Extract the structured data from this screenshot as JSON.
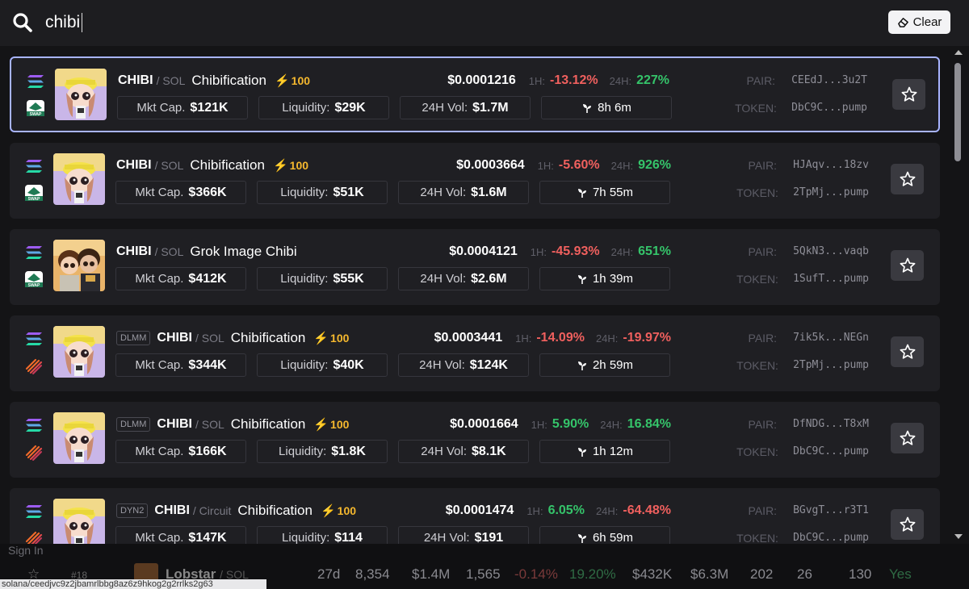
{
  "search": {
    "query": "chibi",
    "clear_label": "Clear"
  },
  "results": [
    {
      "tag": "",
      "symbol": "CHIBI",
      "quote": "/ SOL",
      "name": "Chibification",
      "score": "100",
      "price": "$0.0001216",
      "h1_label": "1H:",
      "h1": "-13.12%",
      "h1_dir": "neg",
      "h24_label": "24H:",
      "h24": "227%",
      "h24_dir": "pos",
      "mcap_label": "Mkt Cap.",
      "mcap": "$121K",
      "liq_label": "Liquidity:",
      "liq": "$29K",
      "vol_label": "24H Vol:",
      "vol": "$1.7M",
      "age": "8h 6m",
      "pair_label": "PAIR:",
      "pair": "CEEdJ...3u2T",
      "token_label": "TOKEN:",
      "token": "DbC9C...pump",
      "dex": "swap",
      "avatar": "girl"
    },
    {
      "tag": "",
      "symbol": "CHIBI",
      "quote": "/ SOL",
      "name": "Chibification",
      "score": "100",
      "price": "$0.0003664",
      "h1_label": "1H:",
      "h1": "-5.60%",
      "h1_dir": "neg",
      "h24_label": "24H:",
      "h24": "926%",
      "h24_dir": "pos",
      "mcap_label": "Mkt Cap.",
      "mcap": "$366K",
      "liq_label": "Liquidity:",
      "liq": "$51K",
      "vol_label": "24H Vol:",
      "vol": "$1.6M",
      "age": "7h 55m",
      "pair_label": "PAIR:",
      "pair": "HJAqv...18zv",
      "token_label": "TOKEN:",
      "token": "2TpMj...pump",
      "dex": "swap",
      "avatar": "girl"
    },
    {
      "tag": "",
      "symbol": "CHIBI",
      "quote": "/ SOL",
      "name": "Grok Image Chibi",
      "score": "",
      "price": "$0.0004121",
      "h1_label": "1H:",
      "h1": "-45.93%",
      "h1_dir": "neg",
      "h24_label": "24H:",
      "h24": "651%",
      "h24_dir": "pos",
      "mcap_label": "Mkt Cap.",
      "mcap": "$412K",
      "liq_label": "Liquidity:",
      "liq": "$55K",
      "vol_label": "24H Vol:",
      "vol": "$2.6M",
      "age": "1h 39m",
      "pair_label": "PAIR:",
      "pair": "5QkN3...vaqb",
      "token_label": "TOKEN:",
      "token": "1SufT...pump",
      "dex": "swap",
      "avatar": "pair"
    },
    {
      "tag": "DLMM",
      "symbol": "CHIBI",
      "quote": "/ SOL",
      "name": "Chibification",
      "score": "100",
      "price": "$0.0003441",
      "h1_label": "1H:",
      "h1": "-14.09%",
      "h1_dir": "neg",
      "h24_label": "24H:",
      "h24": "-19.97%",
      "h24_dir": "neg",
      "mcap_label": "Mkt Cap.",
      "mcap": "$344K",
      "liq_label": "Liquidity:",
      "liq": "$40K",
      "vol_label": "24H Vol:",
      "vol": "$124K",
      "age": "2h 59m",
      "pair_label": "PAIR:",
      "pair": "7ik5k...NEGn",
      "token_label": "TOKEN:",
      "token": "2TpMj...pump",
      "dex": "meteora",
      "avatar": "girl"
    },
    {
      "tag": "DLMM",
      "symbol": "CHIBI",
      "quote": "/ SOL",
      "name": "Chibification",
      "score": "100",
      "price": "$0.0001664",
      "h1_label": "1H:",
      "h1": "5.90%",
      "h1_dir": "pos",
      "h24_label": "24H:",
      "h24": "16.84%",
      "h24_dir": "pos",
      "mcap_label": "Mkt Cap.",
      "mcap": "$166K",
      "liq_label": "Liquidity:",
      "liq": "$1.8K",
      "vol_label": "24H Vol:",
      "vol": "$8.1K",
      "age": "1h 12m",
      "pair_label": "PAIR:",
      "pair": "DfNDG...T8xM",
      "token_label": "TOKEN:",
      "token": "DbC9C...pump",
      "dex": "meteora",
      "avatar": "girl"
    },
    {
      "tag": "DYN2",
      "symbol": "CHIBI",
      "quote": "/ Circuit",
      "name": "Chibification",
      "score": "100",
      "price": "$0.0001474",
      "h1_label": "1H:",
      "h1": "6.05%",
      "h1_dir": "pos",
      "h24_label": "24H:",
      "h24": "-64.48%",
      "h24_dir": "neg",
      "mcap_label": "Mkt Cap.",
      "mcap": "$147K",
      "liq_label": "Liquidity:",
      "liq": "$114",
      "vol_label": "24H Vol:",
      "vol": "$191",
      "age": "6h 59m",
      "pair_label": "PAIR:",
      "pair": "BGvgT...r3T1",
      "token_label": "TOKEN:",
      "token": "DbC9C...pump",
      "dex": "meteora",
      "avatar": "girl"
    }
  ],
  "background_row": {
    "signin": "Sign In",
    "rank": "#18",
    "name": "Lobstar",
    "quote": "/ SOL",
    "cells": [
      "27d",
      "8,354",
      "$1.4M",
      "1,565",
      "-0.14%",
      "19.20%",
      "$432K",
      "$6.3M",
      "202",
      "26",
      "130",
      "Yes"
    ]
  },
  "url_tooltip": "solana/ceedjvc9z2jbamrlbbg8az6z9hkog2g2rrlks2g63",
  "colors": {
    "selected_border": "#a8b4ff",
    "positive": "#35c46a",
    "negative": "#f0605e",
    "score": "#f5b82e"
  }
}
